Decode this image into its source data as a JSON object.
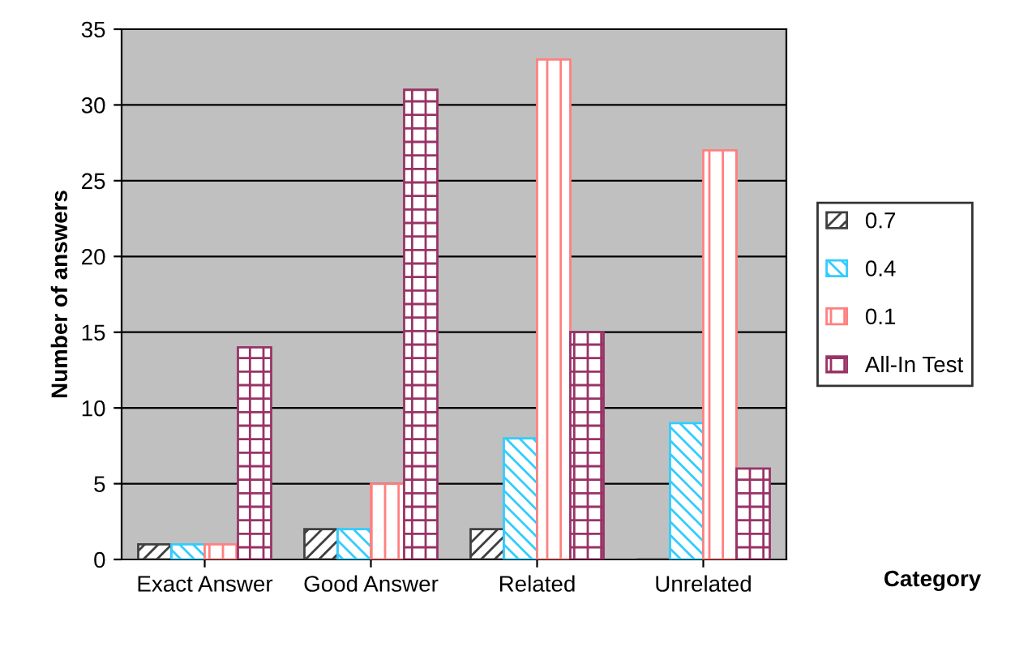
{
  "chart_data": {
    "type": "bar",
    "xlabel": "Category",
    "ylabel": "Number of answers",
    "categories": [
      "Exact Answer",
      "Good Answer",
      "Related",
      "Unrelated"
    ],
    "series": [
      {
        "name": "0.7",
        "color": "#404040",
        "values": [
          1,
          2,
          2,
          0
        ]
      },
      {
        "name": "0.4",
        "color": "#33ccff",
        "values": [
          1,
          2,
          8,
          9
        ]
      },
      {
        "name": "0.1",
        "color": "#ff8080",
        "values": [
          1,
          5,
          33,
          27
        ]
      },
      {
        "name": "All-In Test",
        "color": "#993366",
        "values": [
          14,
          31,
          15,
          6
        ]
      }
    ],
    "ylim": [
      0,
      35
    ],
    "yticks": [
      0,
      5,
      10,
      15,
      20,
      25,
      30,
      35
    ],
    "grid": "y",
    "legend": "right"
  }
}
